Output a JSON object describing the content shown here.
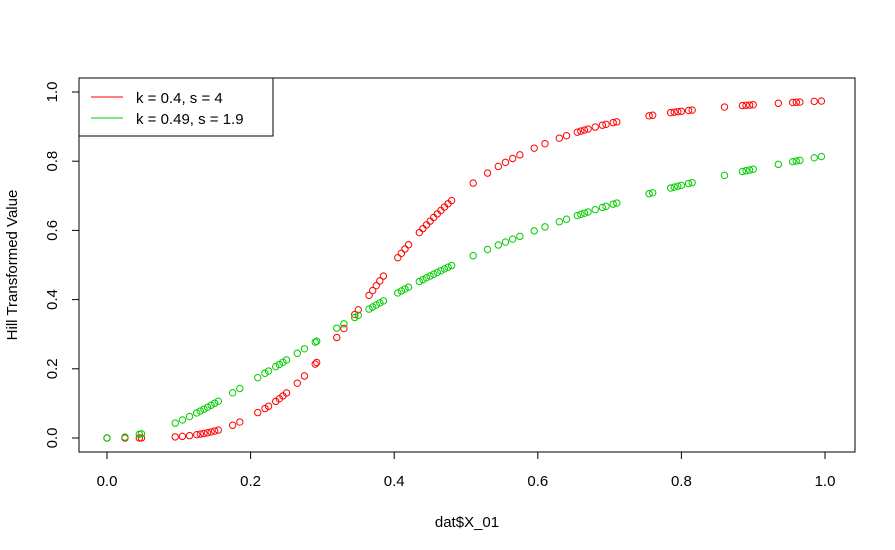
{
  "chart_data": {
    "type": "scatter",
    "xlabel": "dat$X_01",
    "ylabel": "Hill Transformed Value",
    "xlim": [
      -0.04,
      1.04
    ],
    "ylim": [
      -0.04,
      1.04
    ],
    "x_ticks": [
      "0.0",
      "0.2",
      "0.4",
      "0.6",
      "0.8",
      "1.0"
    ],
    "y_ticks": [
      "0.0",
      "0.2",
      "0.4",
      "0.6",
      "0.8",
      "1.0"
    ],
    "grid": false,
    "legend_position": "top-left",
    "x": [
      0.0,
      0.025,
      0.045,
      0.048,
      0.095,
      0.105,
      0.115,
      0.125,
      0.13,
      0.135,
      0.14,
      0.145,
      0.15,
      0.155,
      0.175,
      0.185,
      0.21,
      0.22,
      0.225,
      0.235,
      0.24,
      0.245,
      0.25,
      0.265,
      0.275,
      0.29,
      0.292,
      0.32,
      0.33,
      0.345,
      0.35,
      0.365,
      0.37,
      0.375,
      0.38,
      0.385,
      0.405,
      0.41,
      0.415,
      0.42,
      0.435,
      0.44,
      0.445,
      0.45,
      0.455,
      0.46,
      0.465,
      0.47,
      0.475,
      0.48,
      0.51,
      0.53,
      0.545,
      0.555,
      0.565,
      0.575,
      0.595,
      0.61,
      0.63,
      0.64,
      0.655,
      0.66,
      0.665,
      0.67,
      0.68,
      0.69,
      0.695,
      0.705,
      0.71,
      0.755,
      0.76,
      0.785,
      0.79,
      0.795,
      0.8,
      0.81,
      0.815,
      0.86,
      0.885,
      0.89,
      0.895,
      0.9,
      0.935,
      0.955,
      0.96,
      0.965,
      0.985,
      0.995
    ],
    "series": [
      {
        "name": "k = 0.4, s = 4",
        "color": "#ff0000",
        "values": [
          0.0,
          0.0,
          0.0001,
          0.0001,
          0.0032,
          0.0048,
          0.0069,
          0.0096,
          0.0113,
          0.0131,
          0.0152,
          0.0175,
          0.0201,
          0.0229,
          0.037,
          0.0461,
          0.0734,
          0.0852,
          0.0918,
          0.1059,
          0.1136,
          0.1216,
          0.1302,
          0.1584,
          0.1792,
          0.2136,
          0.2184,
          0.2904,
          0.3164,
          0.3568,
          0.3705,
          0.4122,
          0.4262,
          0.4402,
          0.4541,
          0.4679,
          0.5211,
          0.5338,
          0.5462,
          0.5585,
          0.5938,
          0.6051,
          0.6161,
          0.6269,
          0.6374,
          0.6477,
          0.6577,
          0.6675,
          0.677,
          0.6862,
          0.7367,
          0.7656,
          0.7848,
          0.7966,
          0.8078,
          0.8184,
          0.8377,
          0.8507,
          0.8666,
          0.8738,
          0.8838,
          0.8869,
          0.89,
          0.8929,
          0.8986,
          0.904,
          0.9066,
          0.9115,
          0.9138,
          0.9312,
          0.9328,
          0.9403,
          0.9417,
          0.943,
          0.9443,
          0.9467,
          0.9478,
          0.9565,
          0.9607,
          0.9615,
          0.9622,
          0.963,
          0.9675,
          0.9699,
          0.9704,
          0.9709,
          0.9729,
          0.9738
        ]
      },
      {
        "name": "k = 0.49, s = 1.9",
        "color": "#00cd00",
        "values": [
          0.0,
          0.0026,
          0.0108,
          0.0122,
          0.043,
          0.0522,
          0.062,
          0.0725,
          0.0779,
          0.0834,
          0.089,
          0.0947,
          0.1005,
          0.1064,
          0.1306,
          0.1431,
          0.1744,
          0.1871,
          0.1935,
          0.2063,
          0.2127,
          0.2191,
          0.2256,
          0.2449,
          0.2578,
          0.277,
          0.2796,
          0.3175,
          0.3299,
          0.3484,
          0.3545,
          0.3726,
          0.3786,
          0.3845,
          0.3904,
          0.3962,
          0.4193,
          0.4249,
          0.4305,
          0.436,
          0.4523,
          0.4577,
          0.463,
          0.4682,
          0.4734,
          0.4785,
          0.4836,
          0.4886,
          0.4936,
          0.4985,
          0.5268,
          0.5448,
          0.5578,
          0.5663,
          0.5746,
          0.5828,
          0.5987,
          0.6102,
          0.6251,
          0.6323,
          0.6429,
          0.6463,
          0.6498,
          0.6532,
          0.6598,
          0.6664,
          0.6696,
          0.6759,
          0.6791,
          0.7059,
          0.7087,
          0.7224,
          0.7251,
          0.7277,
          0.7303,
          0.7354,
          0.738,
          0.7592,
          0.7703,
          0.7725,
          0.7746,
          0.7767,
          0.7909,
          0.7987,
          0.8006,
          0.8025,
          0.8098,
          0.8134
        ]
      }
    ]
  }
}
